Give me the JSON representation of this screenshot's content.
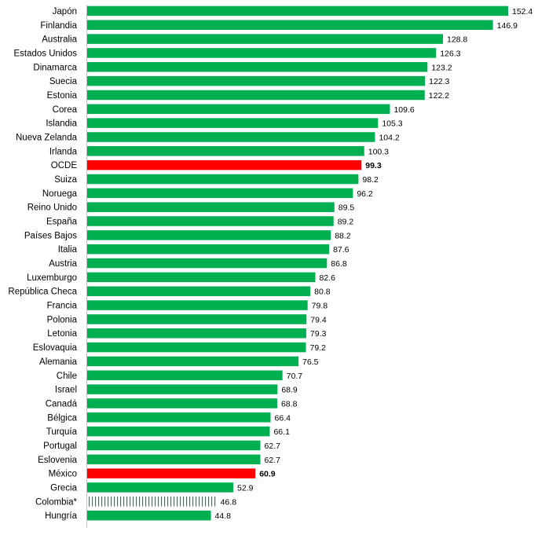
{
  "chart_data": {
    "type": "bar",
    "orientation": "horizontal",
    "categories": [
      "Japón",
      "Finlandia",
      "Australia",
      "Estados Unidos",
      "Dinamarca",
      "Suecia",
      "Estonia",
      "Corea",
      "Islandia",
      "Nueva Zelanda",
      "Irlanda",
      "OCDE",
      "Suiza",
      "Noruega",
      "Reino Unido",
      "España",
      "Países Bajos",
      "Italia",
      "Austria",
      "Luxemburgo",
      "República Checa",
      "Francia",
      "Polonia",
      "Letonia",
      "Eslovaquia",
      "Alemania",
      "Chile",
      "Israel",
      "Canadá",
      "Bélgica",
      "Turquía",
      "Portugal",
      "Eslovenia",
      "México",
      "Grecia",
      "Colombia*",
      "Hungría"
    ],
    "values": [
      152.4,
      146.9,
      128.8,
      126.3,
      123.2,
      122.3,
      122.2,
      109.6,
      105.3,
      104.2,
      100.3,
      99.3,
      98.2,
      96.2,
      89.5,
      89.2,
      88.2,
      87.6,
      86.8,
      82.6,
      80.8,
      79.8,
      79.4,
      79.3,
      79.2,
      76.5,
      70.7,
      68.9,
      68.8,
      66.4,
      66.1,
      62.7,
      62.7,
      60.9,
      52.9,
      46.8,
      44.8
    ],
    "value_labels": [
      "152.4",
      "146.9",
      "128.8",
      "126.3",
      "123.2",
      "122.3",
      "122.2",
      "109.6",
      "105.3",
      "104.2",
      "100.3",
      "99.3",
      "98.2",
      "96.2",
      "89.5",
      "89.2",
      "88.2",
      "87.6",
      "86.8",
      "82.6",
      "80.8",
      "79.8",
      "79.4",
      "79.3",
      "79.2",
      "76.5",
      "70.7",
      "68.9",
      "68.8",
      "66.4",
      "66.1",
      "62.7",
      "62.7",
      "60.9",
      "52.9",
      "46.8",
      "44.8"
    ],
    "highlight": {
      "OCDE": "red",
      "México": "red",
      "Colombia*": "hatched"
    },
    "xlim": [
      0,
      152.4
    ],
    "grid": false,
    "title": "",
    "xlabel": "",
    "ylabel": "",
    "colors": {
      "default": "#00B050",
      "highlight": "#FF0000",
      "hatch": "#2E7D6B"
    }
  }
}
